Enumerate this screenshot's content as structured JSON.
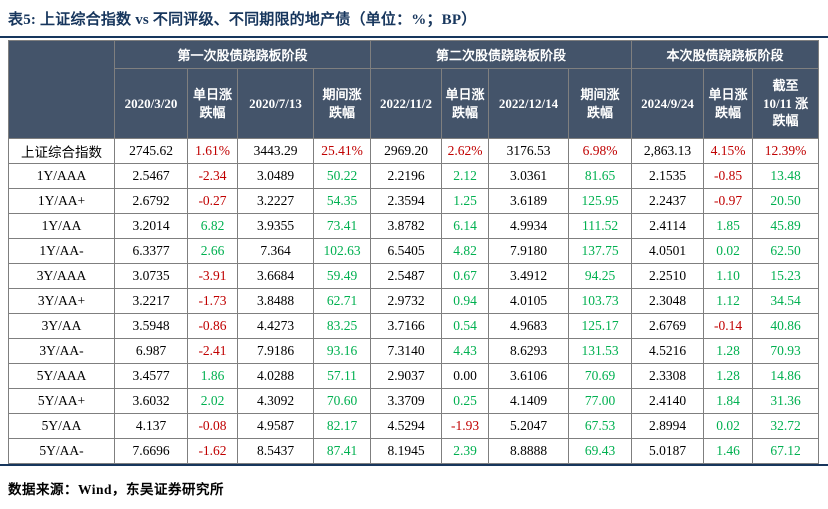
{
  "title": "表5:  上证综合指数 vs 不同评级、不同期限的地产债（单位：%；BP）",
  "source_note": "数据来源：Wind，东吴证券研究所",
  "colors": {
    "accent_navy": "#17365D",
    "header_background": "#44546A",
    "header_text": "#FFFFFF",
    "grid_line": "#7F7F7F",
    "rise_red": "#C00000",
    "fall_green": "#00B050",
    "body_text": "#000000"
  },
  "table": {
    "corner_label": "",
    "groups": [
      {
        "label": "第一次股债跷跷板阶段",
        "span": 4
      },
      {
        "label": "第二次股债跷跷板阶段",
        "span": 4
      },
      {
        "label": "本次股债跷跷板阶段",
        "span": 3
      }
    ],
    "columns": [
      "2020/3/20",
      "单日涨\n跌幅",
      "2020/7/13",
      "期间涨\n跌幅",
      "2022/11/2",
      "单日涨\n跌幅",
      "2022/12/14",
      "期间涨\n跌幅",
      "2024/9/24",
      "单日涨\n跌幅",
      "截至\n10/11 涨\n跌幅"
    ],
    "color_legend": {
      "r": "rise_red",
      "g": "fall_green",
      "k": "body_text"
    },
    "rows": [
      {
        "label": "上证综合指数",
        "cells": [
          [
            "2745.62",
            "k"
          ],
          [
            "1.61%",
            "r"
          ],
          [
            "3443.29",
            "k"
          ],
          [
            "25.41%",
            "r"
          ],
          [
            "2969.20",
            "k"
          ],
          [
            "2.62%",
            "r"
          ],
          [
            "3176.53",
            "k"
          ],
          [
            "6.98%",
            "r"
          ],
          [
            "2,863.13",
            "k"
          ],
          [
            "4.15%",
            "r"
          ],
          [
            "12.39%",
            "r"
          ]
        ]
      },
      {
        "label": "1Y/AAA",
        "cells": [
          [
            "2.5467",
            "k"
          ],
          [
            "-2.34",
            "r"
          ],
          [
            "3.0489",
            "k"
          ],
          [
            "50.22",
            "g"
          ],
          [
            "2.2196",
            "k"
          ],
          [
            "2.12",
            "g"
          ],
          [
            "3.0361",
            "k"
          ],
          [
            "81.65",
            "g"
          ],
          [
            "2.1535",
            "k"
          ],
          [
            "-0.85",
            "r"
          ],
          [
            "13.48",
            "g"
          ]
        ]
      },
      {
        "label": "1Y/AA+",
        "cells": [
          [
            "2.6792",
            "k"
          ],
          [
            "-0.27",
            "r"
          ],
          [
            "3.2227",
            "k"
          ],
          [
            "54.35",
            "g"
          ],
          [
            "2.3594",
            "k"
          ],
          [
            "1.25",
            "g"
          ],
          [
            "3.6189",
            "k"
          ],
          [
            "125.95",
            "g"
          ],
          [
            "2.2437",
            "k"
          ],
          [
            "-0.97",
            "r"
          ],
          [
            "20.50",
            "g"
          ]
        ]
      },
      {
        "label": "1Y/AA",
        "cells": [
          [
            "3.2014",
            "k"
          ],
          [
            "6.82",
            "g"
          ],
          [
            "3.9355",
            "k"
          ],
          [
            "73.41",
            "g"
          ],
          [
            "3.8782",
            "k"
          ],
          [
            "6.14",
            "g"
          ],
          [
            "4.9934",
            "k"
          ],
          [
            "111.52",
            "g"
          ],
          [
            "2.4114",
            "k"
          ],
          [
            "1.85",
            "g"
          ],
          [
            "45.89",
            "g"
          ]
        ]
      },
      {
        "label": "1Y/AA-",
        "cells": [
          [
            "6.3377",
            "k"
          ],
          [
            "2.66",
            "g"
          ],
          [
            "7.364",
            "k"
          ],
          [
            "102.63",
            "g"
          ],
          [
            "6.5405",
            "k"
          ],
          [
            "4.82",
            "g"
          ],
          [
            "7.9180",
            "k"
          ],
          [
            "137.75",
            "g"
          ],
          [
            "4.0501",
            "k"
          ],
          [
            "0.02",
            "g"
          ],
          [
            "62.50",
            "g"
          ]
        ]
      },
      {
        "label": "3Y/AAA",
        "cells": [
          [
            "3.0735",
            "k"
          ],
          [
            "-3.91",
            "r"
          ],
          [
            "3.6684",
            "k"
          ],
          [
            "59.49",
            "g"
          ],
          [
            "2.5487",
            "k"
          ],
          [
            "0.67",
            "g"
          ],
          [
            "3.4912",
            "k"
          ],
          [
            "94.25",
            "g"
          ],
          [
            "2.2510",
            "k"
          ],
          [
            "1.10",
            "g"
          ],
          [
            "15.23",
            "g"
          ]
        ]
      },
      {
        "label": "3Y/AA+",
        "cells": [
          [
            "3.2217",
            "k"
          ],
          [
            "-1.73",
            "r"
          ],
          [
            "3.8488",
            "k"
          ],
          [
            "62.71",
            "g"
          ],
          [
            "2.9732",
            "k"
          ],
          [
            "0.94",
            "g"
          ],
          [
            "4.0105",
            "k"
          ],
          [
            "103.73",
            "g"
          ],
          [
            "2.3048",
            "k"
          ],
          [
            "1.12",
            "g"
          ],
          [
            "34.54",
            "g"
          ]
        ]
      },
      {
        "label": "3Y/AA",
        "cells": [
          [
            "3.5948",
            "k"
          ],
          [
            "-0.86",
            "r"
          ],
          [
            "4.4273",
            "k"
          ],
          [
            "83.25",
            "g"
          ],
          [
            "3.7166",
            "k"
          ],
          [
            "0.54",
            "g"
          ],
          [
            "4.9683",
            "k"
          ],
          [
            "125.17",
            "g"
          ],
          [
            "2.6769",
            "k"
          ],
          [
            "-0.14",
            "r"
          ],
          [
            "40.86",
            "g"
          ]
        ]
      },
      {
        "label": "3Y/AA-",
        "cells": [
          [
            "6.987",
            "k"
          ],
          [
            "-2.41",
            "r"
          ],
          [
            "7.9186",
            "k"
          ],
          [
            "93.16",
            "g"
          ],
          [
            "7.3140",
            "k"
          ],
          [
            "4.43",
            "g"
          ],
          [
            "8.6293",
            "k"
          ],
          [
            "131.53",
            "g"
          ],
          [
            "4.5216",
            "k"
          ],
          [
            "1.28",
            "g"
          ],
          [
            "70.93",
            "g"
          ]
        ]
      },
      {
        "label": "5Y/AAA",
        "cells": [
          [
            "3.4577",
            "k"
          ],
          [
            "1.86",
            "g"
          ],
          [
            "4.0288",
            "k"
          ],
          [
            "57.11",
            "g"
          ],
          [
            "2.9037",
            "k"
          ],
          [
            "0.00",
            "k"
          ],
          [
            "3.6106",
            "k"
          ],
          [
            "70.69",
            "g"
          ],
          [
            "2.3308",
            "k"
          ],
          [
            "1.28",
            "g"
          ],
          [
            "14.86",
            "g"
          ]
        ]
      },
      {
        "label": "5Y/AA+",
        "cells": [
          [
            "3.6032",
            "k"
          ],
          [
            "2.02",
            "g"
          ],
          [
            "4.3092",
            "k"
          ],
          [
            "70.60",
            "g"
          ],
          [
            "3.3709",
            "k"
          ],
          [
            "0.25",
            "g"
          ],
          [
            "4.1409",
            "k"
          ],
          [
            "77.00",
            "g"
          ],
          [
            "2.4140",
            "k"
          ],
          [
            "1.84",
            "g"
          ],
          [
            "31.36",
            "g"
          ]
        ]
      },
      {
        "label": "5Y/AA",
        "cells": [
          [
            "4.137",
            "k"
          ],
          [
            "-0.08",
            "r"
          ],
          [
            "4.9587",
            "k"
          ],
          [
            "82.17",
            "g"
          ],
          [
            "4.5294",
            "k"
          ],
          [
            "-1.93",
            "r"
          ],
          [
            "5.2047",
            "k"
          ],
          [
            "67.53",
            "g"
          ],
          [
            "2.8994",
            "k"
          ],
          [
            "0.02",
            "g"
          ],
          [
            "32.72",
            "g"
          ]
        ]
      },
      {
        "label": "5Y/AA-",
        "cells": [
          [
            "7.6696",
            "k"
          ],
          [
            "-1.62",
            "r"
          ],
          [
            "8.5437",
            "k"
          ],
          [
            "87.41",
            "g"
          ],
          [
            "8.1945",
            "k"
          ],
          [
            "2.39",
            "g"
          ],
          [
            "8.8888",
            "k"
          ],
          [
            "69.43",
            "g"
          ],
          [
            "5.0187",
            "k"
          ],
          [
            "1.46",
            "g"
          ],
          [
            "67.12",
            "g"
          ]
        ]
      }
    ]
  }
}
